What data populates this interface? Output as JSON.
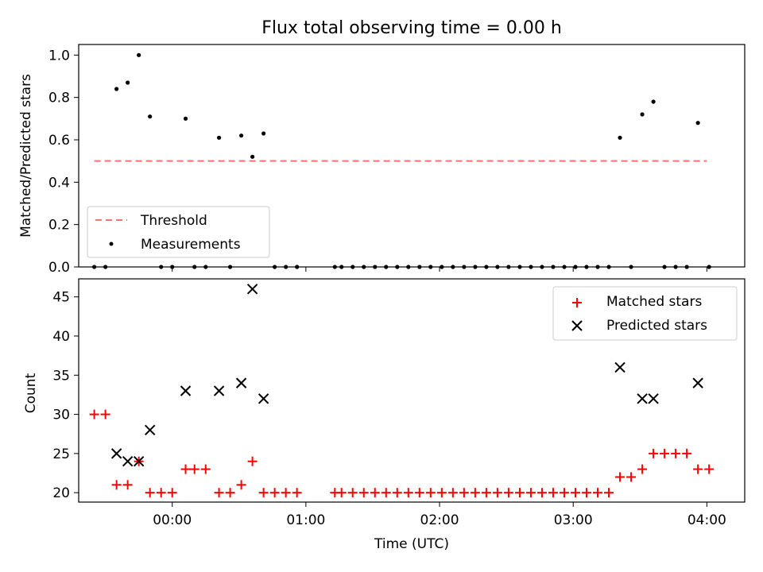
{
  "chart_data": [
    {
      "type": "scatter",
      "title": "Flux total observing time = 0.00 h",
      "xlabel": "",
      "ylabel": "Matched/Predicted stars",
      "ylim": [
        0,
        1.05
      ],
      "yticks": [
        "0.0",
        "0.2",
        "0.4",
        "0.6",
        "0.8",
        "1.0"
      ],
      "legend_position": "lower-left",
      "grid": false,
      "threshold": {
        "name": "Threshold",
        "value": 0.5,
        "x_start": "-0:35",
        "x_end": "4:00",
        "color": "#ff7070"
      },
      "measurements": {
        "name": "Measurements",
        "color": "#000000",
        "points": [
          [
            "-0:35",
            0.0
          ],
          [
            "-0:30",
            0.0
          ],
          [
            "-0:25",
            0.84
          ],
          [
            "-0:20",
            0.87
          ],
          [
            "-0:15",
            1.0
          ],
          [
            "-0:10",
            0.71
          ],
          [
            "-0:05",
            0.0
          ],
          [
            "0:00",
            0.0
          ],
          [
            "0:06",
            0.7
          ],
          [
            "0:10",
            0.0
          ],
          [
            "0:15",
            0.0
          ],
          [
            "0:21",
            0.61
          ],
          [
            "0:26",
            0.0
          ],
          [
            "0:31",
            0.62
          ],
          [
            "0:36",
            0.52
          ],
          [
            "0:41",
            0.63
          ],
          [
            "0:46",
            0.0
          ],
          [
            "0:51",
            0.0
          ],
          [
            "0:56",
            0.0
          ],
          [
            "1:13",
            0.0
          ],
          [
            "1:16",
            0.0
          ],
          [
            "1:21",
            0.0
          ],
          [
            "1:26",
            0.0
          ],
          [
            "1:31",
            0.0
          ],
          [
            "1:36",
            0.0
          ],
          [
            "1:41",
            0.0
          ],
          [
            "1:46",
            0.0
          ],
          [
            "1:51",
            0.0
          ],
          [
            "1:56",
            0.0
          ],
          [
            "2:01",
            0.0
          ],
          [
            "2:06",
            0.0
          ],
          [
            "2:11",
            0.0
          ],
          [
            "2:16",
            0.0
          ],
          [
            "2:21",
            0.0
          ],
          [
            "2:26",
            0.0
          ],
          [
            "2:31",
            0.0
          ],
          [
            "2:36",
            0.0
          ],
          [
            "2:41",
            0.0
          ],
          [
            "2:46",
            0.0
          ],
          [
            "2:51",
            0.0
          ],
          [
            "2:56",
            0.0
          ],
          [
            "3:01",
            0.0
          ],
          [
            "3:06",
            0.0
          ],
          [
            "3:11",
            0.0
          ],
          [
            "3:16",
            0.0
          ],
          [
            "3:21",
            0.61
          ],
          [
            "3:26",
            0.0
          ],
          [
            "3:31",
            0.72
          ],
          [
            "3:36",
            0.78
          ],
          [
            "3:41",
            0.0
          ],
          [
            "3:46",
            0.0
          ],
          [
            "3:51",
            0.0
          ],
          [
            "3:56",
            0.68
          ],
          [
            "4:01",
            0.0
          ]
        ]
      }
    },
    {
      "type": "scatter",
      "title": "",
      "xlabel": "Time (UTC)",
      "ylabel": "Count",
      "ylim": [
        18.8,
        47.3
      ],
      "yticks": [
        "20",
        "25",
        "30",
        "35",
        "40",
        "45"
      ],
      "xlim": [
        "-0:42",
        "4:17"
      ],
      "xticks": [
        "00:00",
        "01:00",
        "02:00",
        "03:00",
        "04:00"
      ],
      "legend_position": "upper-right",
      "grid": false,
      "series": [
        {
          "name": "Matched stars",
          "marker": "+",
          "color": "#ff0000",
          "points": [
            [
              "-0:35",
              30
            ],
            [
              "-0:30",
              30
            ],
            [
              "-0:25",
              21
            ],
            [
              "-0:20",
              21
            ],
            [
              "-0:15",
              24
            ],
            [
              "-0:10",
              20
            ],
            [
              "-0:05",
              20
            ],
            [
              "0:00",
              20
            ],
            [
              "0:06",
              23
            ],
            [
              "0:10",
              23
            ],
            [
              "0:15",
              23
            ],
            [
              "0:21",
              20
            ],
            [
              "0:26",
              20
            ],
            [
              "0:31",
              21
            ],
            [
              "0:36",
              24
            ],
            [
              "0:41",
              20
            ],
            [
              "0:46",
              20
            ],
            [
              "0:51",
              20
            ],
            [
              "0:56",
              20
            ],
            [
              "1:13",
              20
            ],
            [
              "1:16",
              20
            ],
            [
              "1:21",
              20
            ],
            [
              "1:26",
              20
            ],
            [
              "1:31",
              20
            ],
            [
              "1:36",
              20
            ],
            [
              "1:41",
              20
            ],
            [
              "1:46",
              20
            ],
            [
              "1:51",
              20
            ],
            [
              "1:56",
              20
            ],
            [
              "2:01",
              20
            ],
            [
              "2:06",
              20
            ],
            [
              "2:11",
              20
            ],
            [
              "2:16",
              20
            ],
            [
              "2:21",
              20
            ],
            [
              "2:26",
              20
            ],
            [
              "2:31",
              20
            ],
            [
              "2:36",
              20
            ],
            [
              "2:41",
              20
            ],
            [
              "2:46",
              20
            ],
            [
              "2:51",
              20
            ],
            [
              "2:56",
              20
            ],
            [
              "3:01",
              20
            ],
            [
              "3:06",
              20
            ],
            [
              "3:11",
              20
            ],
            [
              "3:16",
              20
            ],
            [
              "3:21",
              22
            ],
            [
              "3:26",
              22
            ],
            [
              "3:31",
              23
            ],
            [
              "3:36",
              25
            ],
            [
              "3:41",
              25
            ],
            [
              "3:46",
              25
            ],
            [
              "3:51",
              25
            ],
            [
              "3:56",
              23
            ],
            [
              "4:01",
              23
            ]
          ]
        },
        {
          "name": "Predicted stars",
          "marker": "x",
          "color": "#000000",
          "points": [
            [
              "-0:25",
              25
            ],
            [
              "-0:20",
              24
            ],
            [
              "-0:15",
              24
            ],
            [
              "-0:10",
              28
            ],
            [
              "0:06",
              33
            ],
            [
              "0:21",
              33
            ],
            [
              "0:31",
              34
            ],
            [
              "0:36",
              46
            ],
            [
              "0:41",
              32
            ],
            [
              "3:21",
              36
            ],
            [
              "3:31",
              32
            ],
            [
              "3:36",
              32
            ],
            [
              "3:56",
              34
            ]
          ]
        }
      ]
    }
  ]
}
